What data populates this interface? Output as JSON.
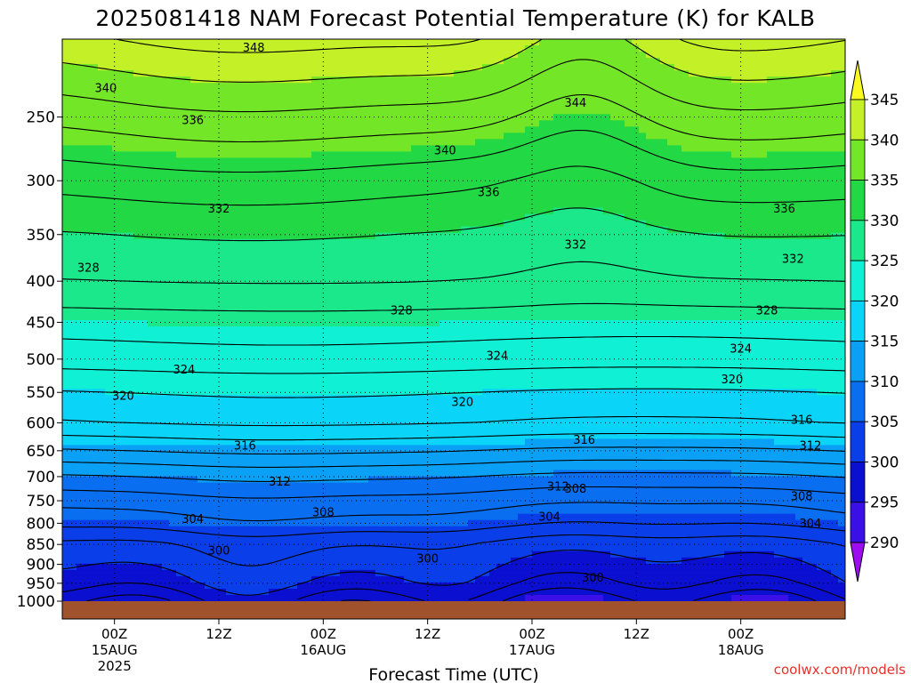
{
  "chart_data": {
    "type": "heatmap",
    "title": "2025081418 NAM Forecast Potential Temperature (K) for KALB",
    "xlabel": "Forecast Time (UTC)",
    "ylabel": "",
    "credit": "coolwx.com/models",
    "y_scale": "log-pressure",
    "y_reversed": true,
    "ylim": [
      1000,
      200
    ],
    "xlim_hours": [
      -6,
      84
    ],
    "y_ticks": [
      250,
      300,
      350,
      400,
      450,
      500,
      550,
      600,
      650,
      700,
      750,
      800,
      850,
      900,
      950,
      1000
    ],
    "x_ticks": [
      {
        "hour": 0,
        "label": "00Z",
        "sub": "15AUG",
        "sub2": "2025"
      },
      {
        "hour": 12,
        "label": "12Z",
        "sub": "",
        "sub2": ""
      },
      {
        "hour": 24,
        "label": "00Z",
        "sub": "16AUG",
        "sub2": ""
      },
      {
        "hour": 36,
        "label": "12Z",
        "sub": "",
        "sub2": ""
      },
      {
        "hour": 48,
        "label": "00Z",
        "sub": "17AUG",
        "sub2": ""
      },
      {
        "hour": 60,
        "label": "12Z",
        "sub": "",
        "sub2": ""
      },
      {
        "hour": 72,
        "label": "00Z",
        "sub": "18AUG",
        "sub2": ""
      }
    ],
    "grid": true,
    "legend": "colorbar-right",
    "colorbar": {
      "levels": [
        290,
        295,
        300,
        305,
        310,
        315,
        320,
        325,
        330,
        335,
        340,
        345
      ],
      "labels": [
        "290",
        "295",
        "300",
        "305",
        "310",
        "315",
        "320",
        "325",
        "330",
        "335",
        "340",
        "345"
      ],
      "colors": [
        "#9e0cf0",
        "#3a10e6",
        "#0a0fd0",
        "#0a3ee8",
        "#0a6ef0",
        "#0aa0f5",
        "#0ad4f8",
        "#10f0d4",
        "#1ae88a",
        "#23d845",
        "#74e628",
        "#c4f028",
        "#fafa1e"
      ]
    },
    "field_description": "Potential temperature (K), increasing upward from ~298 K near 1000 hPa to ~348 K near 200 hPa",
    "profile_example_hour0": [
      {
        "p": 1000,
        "theta": 298
      },
      {
        "p": 950,
        "theta": 300
      },
      {
        "p": 900,
        "theta": 301
      },
      {
        "p": 850,
        "theta": 302
      },
      {
        "p": 800,
        "theta": 305
      },
      {
        "p": 750,
        "theta": 307
      },
      {
        "p": 700,
        "theta": 310
      },
      {
        "p": 650,
        "theta": 314
      },
      {
        "p": 600,
        "theta": 318
      },
      {
        "p": 550,
        "theta": 320
      },
      {
        "p": 500,
        "theta": 323
      },
      {
        "p": 450,
        "theta": 325
      },
      {
        "p": 400,
        "theta": 328
      },
      {
        "p": 350,
        "theta": 330
      },
      {
        "p": 300,
        "theta": 333
      },
      {
        "p": 250,
        "theta": 337
      },
      {
        "p": 200,
        "theta": 342
      }
    ],
    "contour_interval": 2,
    "contour_labels": [
      {
        "value": "348",
        "hour": 16,
        "p": 205
      },
      {
        "value": "340",
        "hour": -1,
        "p": 230
      },
      {
        "value": "336",
        "hour": 9,
        "p": 252
      },
      {
        "value": "344",
        "hour": 53,
        "p": 240
      },
      {
        "value": "340",
        "hour": 38,
        "p": 275
      },
      {
        "value": "336",
        "hour": 43,
        "p": 310
      },
      {
        "value": "336",
        "hour": 77,
        "p": 325
      },
      {
        "value": "332",
        "hour": 12,
        "p": 325
      },
      {
        "value": "332",
        "hour": 53,
        "p": 360
      },
      {
        "value": "332",
        "hour": 78,
        "p": 375
      },
      {
        "value": "328",
        "hour": -3,
        "p": 385
      },
      {
        "value": "328",
        "hour": 33,
        "p": 435
      },
      {
        "value": "328",
        "hour": 75,
        "p": 435
      },
      {
        "value": "324",
        "hour": 8,
        "p": 515
      },
      {
        "value": "324",
        "hour": 44,
        "p": 495
      },
      {
        "value": "324",
        "hour": 72,
        "p": 485
      },
      {
        "value": "320",
        "hour": 1,
        "p": 555
      },
      {
        "value": "320",
        "hour": 40,
        "p": 565
      },
      {
        "value": "320",
        "hour": 71,
        "p": 530
      },
      {
        "value": "316",
        "hour": 15,
        "p": 640
      },
      {
        "value": "316",
        "hour": 54,
        "p": 630
      },
      {
        "value": "316",
        "hour": 79,
        "p": 595
      },
      {
        "value": "312",
        "hour": 19,
        "p": 710
      },
      {
        "value": "312",
        "hour": 51,
        "p": 720
      },
      {
        "value": "312",
        "hour": 80,
        "p": 640
      },
      {
        "value": "308",
        "hour": 53,
        "p": 725
      },
      {
        "value": "308",
        "hour": 79,
        "p": 740
      },
      {
        "value": "308",
        "hour": 24,
        "p": 775
      },
      {
        "value": "304",
        "hour": 9,
        "p": 790
      },
      {
        "value": "304",
        "hour": 50,
        "p": 785
      },
      {
        "value": "304",
        "hour": 80,
        "p": 800
      },
      {
        "value": "300",
        "hour": 12,
        "p": 865
      },
      {
        "value": "300",
        "hour": 36,
        "p": 885
      },
      {
        "value": "300",
        "hour": 55,
        "p": 935
      }
    ],
    "ground_color": "#a0522d"
  }
}
